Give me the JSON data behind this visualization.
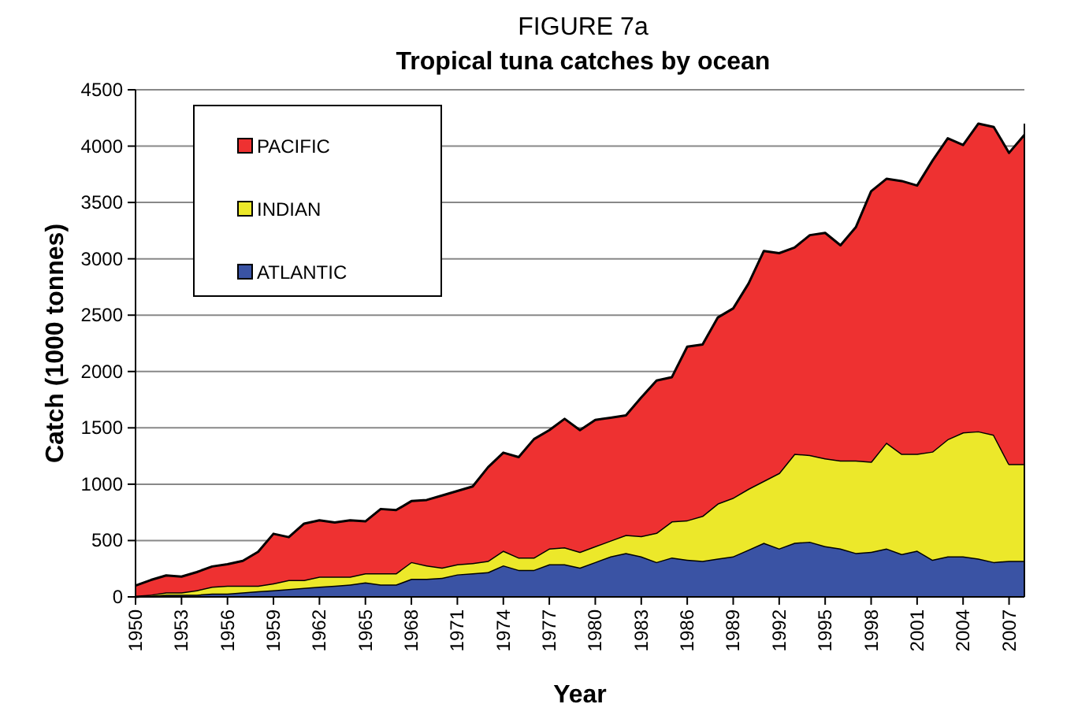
{
  "chart_data": {
    "type": "area",
    "stacked": true,
    "title": "FIGURE 7a",
    "subtitle": "Tropical tuna catches by ocean",
    "xlabel": "Year",
    "ylabel": "Catch (1000 tonnes)",
    "x": [
      1950,
      1951,
      1952,
      1953,
      1954,
      1955,
      1956,
      1957,
      1958,
      1959,
      1960,
      1961,
      1962,
      1963,
      1964,
      1965,
      1966,
      1967,
      1968,
      1969,
      1970,
      1971,
      1972,
      1973,
      1974,
      1975,
      1976,
      1977,
      1978,
      1979,
      1980,
      1981,
      1982,
      1983,
      1984,
      1985,
      1986,
      1987,
      1988,
      1989,
      1990,
      1991,
      1992,
      1993,
      1994,
      1995,
      1996,
      1997,
      1998,
      1999,
      2000,
      2001,
      2002,
      2003,
      2004,
      2005,
      2006,
      2007,
      2008
    ],
    "series": [
      {
        "name": "ATLANTIC",
        "color": "#3a53a4",
        "values": [
          0,
          10,
          20,
          20,
          20,
          30,
          30,
          40,
          50,
          60,
          70,
          80,
          90,
          100,
          110,
          130,
          110,
          110,
          160,
          160,
          170,
          200,
          210,
          220,
          280,
          240,
          240,
          290,
          290,
          260,
          310,
          360,
          390,
          360,
          310,
          350,
          330,
          320,
          340,
          360,
          420,
          480,
          430,
          480,
          490,
          450,
          430,
          390,
          400,
          430,
          380,
          410,
          330,
          360,
          360,
          340,
          310,
          320,
          320
        ]
      },
      {
        "name": "INDIAN",
        "color": "#ece82a",
        "values": [
          10,
          10,
          20,
          20,
          40,
          60,
          70,
          60,
          50,
          60,
          80,
          70,
          90,
          80,
          70,
          80,
          100,
          100,
          150,
          120,
          90,
          90,
          90,
          100,
          130,
          110,
          110,
          140,
          150,
          140,
          140,
          140,
          160,
          180,
          260,
          320,
          350,
          400,
          490,
          520,
          540,
          550,
          670,
          790,
          770,
          780,
          780,
          820,
          800,
          940,
          890,
          860,
          960,
          1040,
          1100,
          1130,
          1130,
          860,
          860
        ]
      },
      {
        "name": "PACIFIC",
        "color": "#ee3131",
        "values": [
          90,
          130,
          150,
          140,
          160,
          180,
          190,
          220,
          300,
          440,
          380,
          500,
          500,
          480,
          500,
          460,
          570,
          560,
          540,
          580,
          640,
          650,
          680,
          830,
          870,
          890,
          1050,
          1050,
          1140,
          1080,
          1120,
          1090,
          1060,
          1230,
          1350,
          1280,
          1540,
          1520,
          1650,
          1680,
          1820,
          2040,
          1950,
          1830,
          1950,
          2000,
          1910,
          2070,
          2400,
          2340,
          2420,
          2380,
          2580,
          2670,
          2550,
          2730,
          2730,
          2760,
          2920
        ]
      }
    ],
    "xlim": [
      1950,
      2008
    ],
    "xticks": [
      1950,
      1953,
      1956,
      1959,
      1962,
      1965,
      1968,
      1971,
      1974,
      1977,
      1980,
      1983,
      1986,
      1989,
      1992,
      1995,
      1998,
      2001,
      2004,
      2007
    ],
    "ylim": [
      0,
      4500
    ],
    "yticks": [
      0,
      500,
      1000,
      1500,
      2000,
      2500,
      3000,
      3500,
      4000,
      4500
    ],
    "grid": "y",
    "legend": "top left"
  }
}
